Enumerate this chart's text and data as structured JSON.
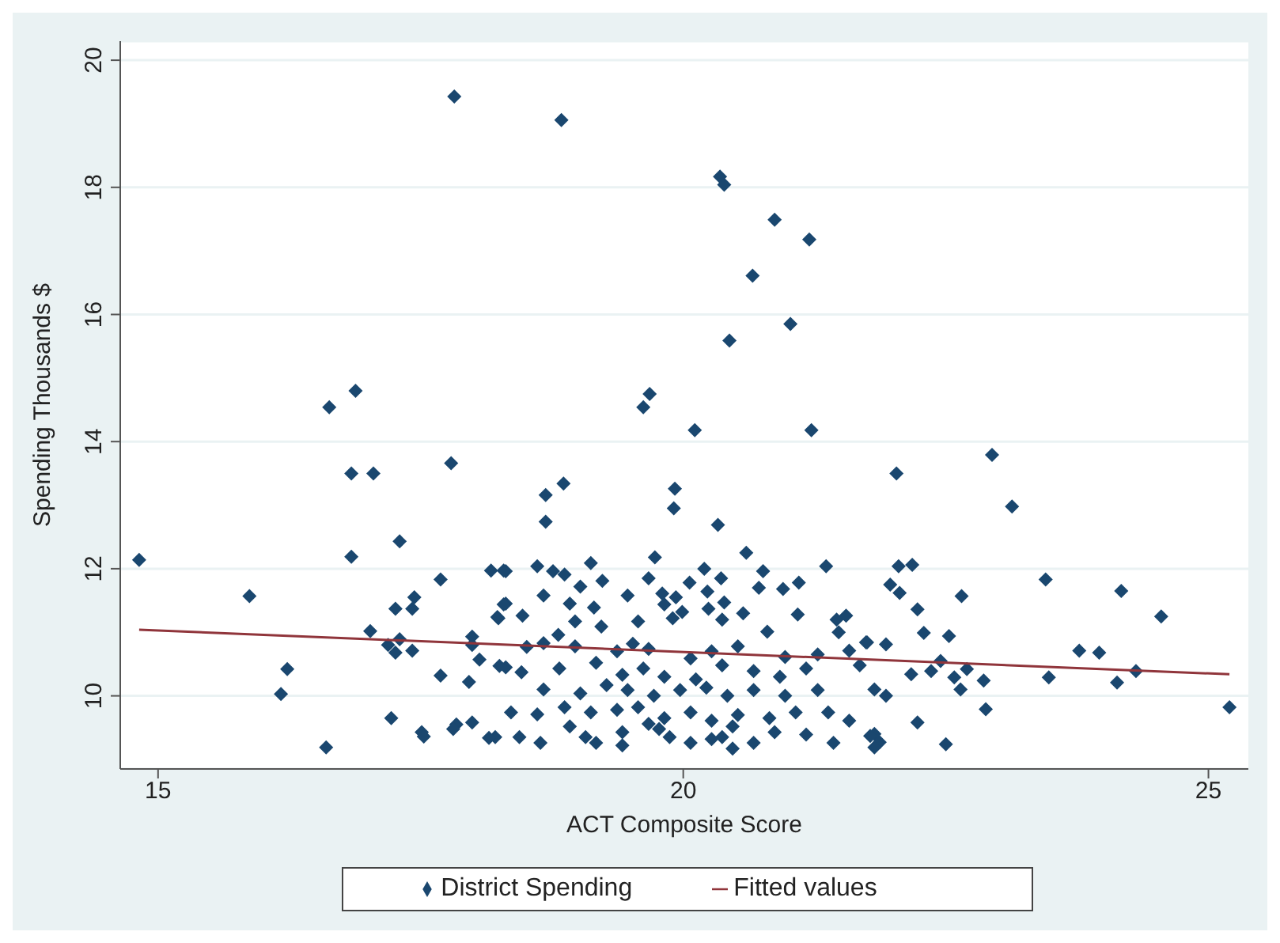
{
  "chart_data": {
    "type": "scatter",
    "xlabel": "ACT Composite Score",
    "ylabel": "Spending Thousands $",
    "xlim": [
      14.64,
      25.38
    ],
    "ylim": [
      8.85,
      20.3
    ],
    "xticks": [
      15,
      20,
      25
    ],
    "yticks": [
      10,
      12,
      14,
      16,
      18,
      20
    ],
    "grid": "y",
    "legend": "bottom",
    "series": [
      {
        "name": "District Spending",
        "marker": "diamond",
        "color": "#1a476f",
        "x": [
          14.82,
          15.87,
          16.17,
          16.23,
          16.6,
          16.84,
          17.3,
          17.02,
          17.82,
          18.84,
          16.63,
          16.88,
          16.84,
          17.05,
          17.79,
          18.69,
          18.86,
          18.69,
          19.62,
          19.68,
          19.92,
          19.91,
          20.35,
          20.39,
          20.87,
          21.2,
          20.66,
          20.44,
          21.02,
          20.11,
          21.22,
          22.03,
          22.94,
          23.13,
          20.33,
          23.45,
          24.17,
          24.55,
          23.77,
          23.96,
          23.48,
          24.13,
          24.31,
          25.2,
          22.05,
          22.18,
          21.97,
          22.06,
          22.23,
          22.65,
          22.29,
          22.53,
          21.75,
          21.93,
          22.17,
          22.36,
          22.58,
          22.7,
          22.86,
          22.64,
          21.82,
          21.93,
          22.88,
          22.23,
          22.5,
          21.82,
          21.87,
          21.82,
          22.45,
          18.31,
          18.61,
          18.76,
          18.87,
          19.12,
          19.23,
          19.73,
          19.67,
          20.06,
          20.2,
          20.36,
          20.6,
          20.76,
          20.95,
          21.1,
          21.36,
          18.67,
          19.02,
          19.47,
          19.8,
          19.93,
          20.23,
          20.72,
          18.31,
          18.47,
          18.92,
          19.15,
          19.82,
          19.99,
          20.24,
          20.39,
          21.09,
          21.46,
          21.55,
          18.23,
          18.81,
          18.97,
          19.22,
          19.57,
          19.9,
          20.37,
          20.57,
          20.8,
          21.48,
          21.74,
          18.67,
          18.51,
          18.97,
          19.37,
          19.52,
          19.67,
          20.07,
          20.27,
          20.52,
          20.97,
          21.28,
          21.58,
          18.31,
          18.46,
          18.82,
          19.17,
          19.42,
          19.62,
          19.82,
          20.12,
          20.37,
          20.67,
          20.92,
          21.17,
          21.68,
          18.67,
          19.02,
          19.27,
          19.47,
          19.72,
          19.97,
          20.22,
          20.42,
          20.67,
          20.97,
          21.28,
          18.36,
          18.61,
          18.87,
          19.12,
          19.37,
          19.57,
          19.82,
          20.07,
          20.27,
          20.52,
          20.82,
          21.07,
          21.38,
          21.58,
          18.21,
          18.44,
          18.64,
          18.92,
          19.17,
          19.42,
          19.67,
          19.87,
          20.07,
          20.27,
          20.47,
          20.67,
          20.87,
          21.17,
          21.43,
          21.78,
          19.07,
          19.77,
          20.37,
          19.42,
          20.47,
          17.44,
          17.42,
          17.26,
          17.69,
          18.17,
          18.29,
          18.24,
          18.29,
          17.3,
          17.19,
          17.26,
          17.42,
          17.99,
          17.99,
          18.06,
          18.25,
          17.69,
          17.96,
          17.22,
          17.51,
          17.84,
          17.99,
          18.15,
          17.53,
          17.81
        ],
        "values": [
          12.14,
          11.57,
          10.03,
          10.42,
          9.19,
          12.19,
          12.43,
          11.02,
          19.43,
          19.06,
          14.54,
          14.8,
          13.5,
          13.5,
          13.66,
          13.16,
          13.34,
          12.74,
          14.54,
          14.75,
          13.26,
          12.95,
          18.17,
          18.04,
          17.49,
          17.18,
          16.61,
          15.59,
          15.85,
          14.18,
          14.18,
          13.5,
          13.79,
          12.98,
          12.69,
          11.83,
          11.65,
          11.25,
          10.71,
          10.68,
          10.29,
          10.21,
          10.39,
          9.82,
          12.04,
          12.06,
          11.75,
          11.62,
          11.36,
          11.57,
          10.99,
          10.94,
          10.84,
          10.81,
          10.34,
          10.39,
          10.29,
          10.42,
          10.24,
          10.1,
          10.1,
          10.0,
          9.79,
          9.58,
          9.24,
          9.4,
          9.27,
          9.19,
          10.55,
          11.96,
          12.04,
          11.96,
          11.91,
          12.09,
          11.81,
          12.18,
          11.85,
          11.78,
          12.0,
          11.85,
          12.25,
          11.96,
          11.68,
          11.78,
          12.04,
          11.58,
          11.72,
          11.58,
          11.61,
          11.55,
          11.64,
          11.7,
          11.45,
          11.26,
          11.45,
          11.39,
          11.44,
          11.32,
          11.37,
          11.47,
          11.28,
          11.2,
          11.26,
          11.24,
          10.96,
          11.17,
          11.09,
          11.17,
          11.22,
          11.2,
          11.3,
          11.01,
          11.0,
          10.84,
          10.83,
          10.77,
          10.78,
          10.7,
          10.82,
          10.74,
          10.59,
          10.7,
          10.78,
          10.61,
          10.65,
          10.71,
          10.45,
          10.37,
          10.43,
          10.52,
          10.33,
          10.43,
          10.3,
          10.26,
          10.48,
          10.39,
          10.3,
          10.43,
          10.48,
          10.1,
          10.04,
          10.17,
          10.09,
          10.0,
          10.09,
          10.13,
          10.0,
          10.09,
          10.0,
          10.09,
          9.74,
          9.71,
          9.82,
          9.74,
          9.78,
          9.82,
          9.65,
          9.74,
          9.61,
          9.7,
          9.65,
          9.74,
          9.74,
          9.61,
          9.35,
          9.35,
          9.26,
          9.52,
          9.26,
          9.43,
          9.56,
          9.35,
          9.26,
          9.32,
          9.52,
          9.26,
          9.43,
          9.39,
          9.26,
          9.37,
          9.35,
          9.48,
          9.35,
          9.22,
          9.17,
          11.55,
          11.37,
          11.37,
          11.83,
          11.97,
          11.97,
          11.22,
          11.44,
          10.89,
          10.8,
          10.68,
          10.71,
          10.93,
          10.8,
          10.57,
          10.47,
          10.32,
          10.22,
          9.65,
          9.43,
          9.55,
          9.58,
          9.34,
          9.36,
          9.48
        ]
      },
      {
        "name": "Fitted values",
        "type": "line",
        "marker": "none",
        "color": "#90353b",
        "line_style": "solid",
        "x": [
          14.82,
          25.2
        ],
        "values": [
          11.04,
          10.34
        ]
      }
    ]
  }
}
